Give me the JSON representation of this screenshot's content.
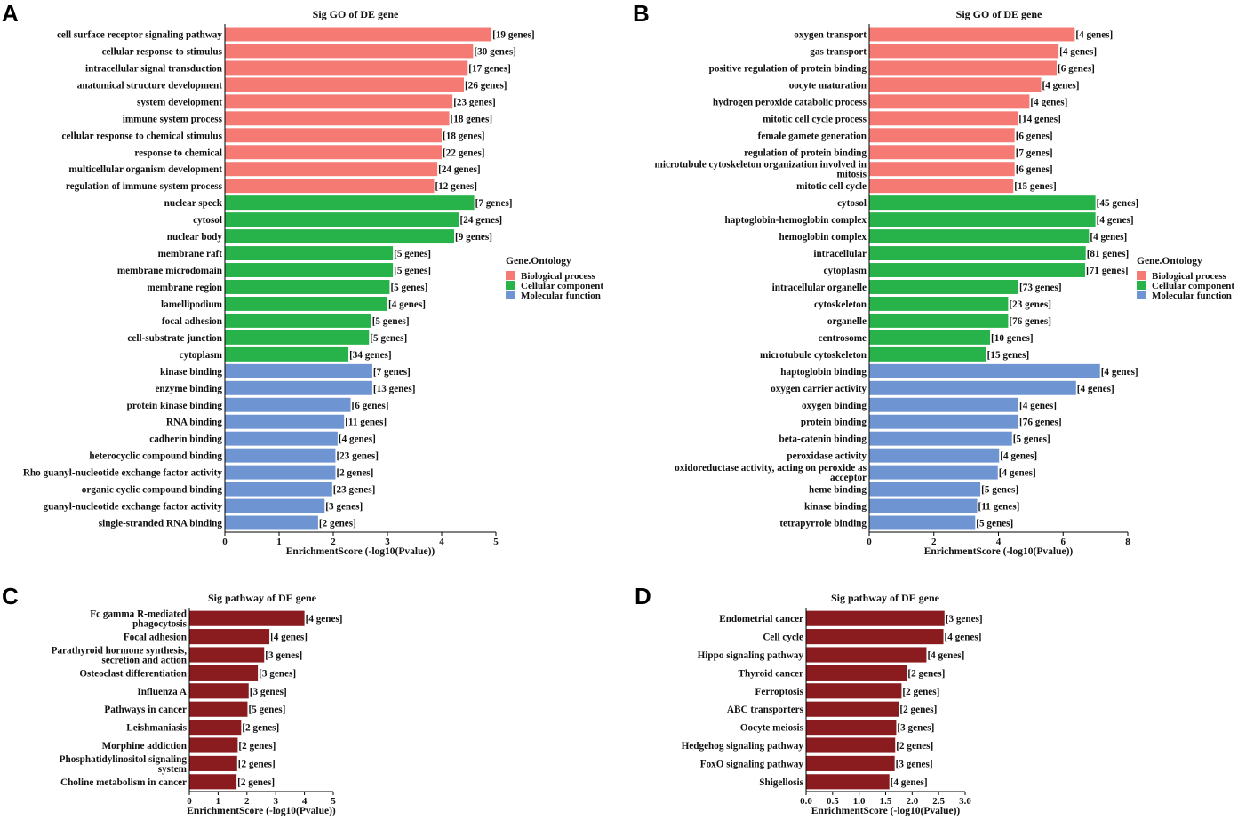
{
  "colors": {
    "biological_process": "#F47A73",
    "cellular_component": "#27B34A",
    "molecular_function": "#6E95D2",
    "pathway": "#8A1C1F"
  },
  "chart_data": [
    {
      "panel": "A",
      "type": "bar",
      "orientation": "horizontal",
      "title": "Sig GO of DE gene",
      "xlabel": "EnrichmentScore (-log10(Pvalue))",
      "xlim": [
        0,
        5
      ],
      "xticks": [
        "0",
        "1",
        "2",
        "3",
        "4",
        "5"
      ],
      "legend": {
        "title": "Gene.Ontology",
        "position": "right",
        "entries": [
          {
            "label": "Biological process",
            "group": "biological_process"
          },
          {
            "label": "Cellular component",
            "group": "cellular_component"
          },
          {
            "label": "Molecular function",
            "group": "molecular_function"
          }
        ]
      },
      "bars": [
        {
          "category": "cell surface receptor signaling pathway",
          "value": 4.92,
          "label": "[19 genes]",
          "group": "biological_process"
        },
        {
          "category": "cellular response to stimulus",
          "value": 4.58,
          "label": "[30 genes]",
          "group": "biological_process"
        },
        {
          "category": "intracellular signal transduction",
          "value": 4.48,
          "label": "[17 genes]",
          "group": "biological_process"
        },
        {
          "category": "anatomical structure development",
          "value": 4.41,
          "label": "[26 genes]",
          "group": "biological_process"
        },
        {
          "category": "system development",
          "value": 4.2,
          "label": "[23 genes]",
          "group": "biological_process"
        },
        {
          "category": "immune system process",
          "value": 4.14,
          "label": "[18 genes]",
          "group": "biological_process"
        },
        {
          "category": "cellular response to chemical stimulus",
          "value": 4.0,
          "label": "[18 genes]",
          "group": "biological_process"
        },
        {
          "category": "response to chemical",
          "value": 4.0,
          "label": "[22 genes]",
          "group": "biological_process"
        },
        {
          "category": "multicellular organism development",
          "value": 3.92,
          "label": "[24 genes]",
          "group": "biological_process"
        },
        {
          "category": "regulation of immune system process",
          "value": 3.86,
          "label": "[12 genes]",
          "group": "biological_process"
        },
        {
          "category": "nuclear speck",
          "value": 4.6,
          "label": "[7 genes]",
          "group": "cellular_component"
        },
        {
          "category": "cytosol",
          "value": 4.32,
          "label": "[24 genes]",
          "group": "cellular_component"
        },
        {
          "category": "nuclear body",
          "value": 4.23,
          "label": "[9 genes]",
          "group": "cellular_component"
        },
        {
          "category": "membrane raft",
          "value": 3.1,
          "label": "[5 genes]",
          "group": "cellular_component"
        },
        {
          "category": "membrane microdomain",
          "value": 3.1,
          "label": "[5 genes]",
          "group": "cellular_component"
        },
        {
          "category": "membrane region",
          "value": 3.04,
          "label": "[5 genes]",
          "group": "cellular_component"
        },
        {
          "category": "lamellipodium",
          "value": 3.0,
          "label": "[4 genes]",
          "group": "cellular_component"
        },
        {
          "category": "focal adhesion",
          "value": 2.7,
          "label": "[5 genes]",
          "group": "cellular_component"
        },
        {
          "category": "cell-substrate junction",
          "value": 2.66,
          "label": "[5 genes]",
          "group": "cellular_component"
        },
        {
          "category": "cytoplasm",
          "value": 2.28,
          "label": "[34 genes]",
          "group": "cellular_component"
        },
        {
          "category": "kinase binding",
          "value": 2.72,
          "label": "[7 genes]",
          "group": "molecular_function"
        },
        {
          "category": "enzyme binding",
          "value": 2.72,
          "label": "[13 genes]",
          "group": "molecular_function"
        },
        {
          "category": "protein kinase binding",
          "value": 2.32,
          "label": "[6 genes]",
          "group": "molecular_function"
        },
        {
          "category": "RNA binding",
          "value": 2.2,
          "label": "[11 genes]",
          "group": "molecular_function"
        },
        {
          "category": "cadherin binding",
          "value": 2.08,
          "label": "[4 genes]",
          "group": "molecular_function"
        },
        {
          "category": "heterocyclic compound binding",
          "value": 2.04,
          "label": "[23 genes]",
          "group": "molecular_function"
        },
        {
          "category": "Rho guanyl-nucleotide exchange factor activity",
          "value": 2.04,
          "label": "[2 genes]",
          "group": "molecular_function"
        },
        {
          "category": "organic cyclic compound binding",
          "value": 1.98,
          "label": "[23 genes]",
          "group": "molecular_function"
        },
        {
          "category": "guanyl-nucleotide exchange factor activity",
          "value": 1.84,
          "label": "[3 genes]",
          "group": "molecular_function"
        },
        {
          "category": "single-stranded RNA binding",
          "value": 1.72,
          "label": "[2 genes]",
          "group": "molecular_function"
        }
      ]
    },
    {
      "panel": "B",
      "type": "bar",
      "orientation": "horizontal",
      "title": "Sig GO of DE gene",
      "xlabel": "EnrichmentScore (-log10(Pvalue))",
      "xlim": [
        0,
        8
      ],
      "xticks": [
        "0",
        "2",
        "4",
        "6",
        "8"
      ],
      "legend": {
        "title": "Gene.Ontology",
        "position": "right",
        "entries": [
          {
            "label": "Biological process",
            "group": "biological_process"
          },
          {
            "label": "Cellular component",
            "group": "cellular_component"
          },
          {
            "label": "Molecular function",
            "group": "molecular_function"
          }
        ]
      },
      "bars": [
        {
          "category": "oxygen transport",
          "value": 6.36,
          "label": "[4 genes]",
          "group": "biological_process"
        },
        {
          "category": "gas transport",
          "value": 5.86,
          "label": "[4 genes]",
          "group": "biological_process"
        },
        {
          "category": "positive regulation of protein binding",
          "value": 5.8,
          "label": "[6 genes]",
          "group": "biological_process"
        },
        {
          "category": "oocyte maturation",
          "value": 5.32,
          "label": "[4 genes]",
          "group": "biological_process"
        },
        {
          "category": "hydrogen peroxide catabolic process",
          "value": 4.96,
          "label": "[4 genes]",
          "group": "biological_process"
        },
        {
          "category": "mitotic cell cycle process",
          "value": 4.6,
          "label": "[14 genes]",
          "group": "biological_process"
        },
        {
          "category": "female gamete generation",
          "value": 4.5,
          "label": "[6 genes]",
          "group": "biological_process"
        },
        {
          "category": "regulation of protein binding",
          "value": 4.5,
          "label": "[7 genes]",
          "group": "biological_process"
        },
        {
          "category": "microtubule cytoskeleton organization involved in mitosis",
          "value": 4.5,
          "label": "[6 genes]",
          "group": "biological_process"
        },
        {
          "category": "mitotic cell cycle",
          "value": 4.46,
          "label": "[15 genes]",
          "group": "biological_process"
        },
        {
          "category": "cytosol",
          "value": 7.0,
          "label": "[45 genes]",
          "group": "cellular_component"
        },
        {
          "category": "haptoglobin-hemoglobin complex",
          "value": 7.0,
          "label": "[4 genes]",
          "group": "cellular_component"
        },
        {
          "category": "hemoglobin complex",
          "value": 6.8,
          "label": "[4 genes]",
          "group": "cellular_component"
        },
        {
          "category": "intracellular",
          "value": 6.7,
          "label": "[81 genes]",
          "group": "cellular_component"
        },
        {
          "category": "cytoplasm",
          "value": 6.68,
          "label": "[71 genes]",
          "group": "cellular_component"
        },
        {
          "category": "intracellular organelle",
          "value": 4.62,
          "label": "[73 genes]",
          "group": "cellular_component"
        },
        {
          "category": "cytoskeleton",
          "value": 4.3,
          "label": "[23 genes]",
          "group": "cellular_component"
        },
        {
          "category": "organelle",
          "value": 4.3,
          "label": "[76 genes]",
          "group": "cellular_component"
        },
        {
          "category": "centrosome",
          "value": 3.74,
          "label": "[10 genes]",
          "group": "cellular_component"
        },
        {
          "category": "microtubule cytoskeleton",
          "value": 3.62,
          "label": "[15 genes]",
          "group": "cellular_component"
        },
        {
          "category": "haptoglobin binding",
          "value": 7.14,
          "label": "[4 genes]",
          "group": "molecular_function"
        },
        {
          "category": "oxygen carrier activity",
          "value": 6.4,
          "label": "[4 genes]",
          "group": "molecular_function"
        },
        {
          "category": "oxygen binding",
          "value": 4.62,
          "label": "[4 genes]",
          "group": "molecular_function"
        },
        {
          "category": "protein binding",
          "value": 4.62,
          "label": "[76 genes]",
          "group": "molecular_function"
        },
        {
          "category": "beta-catenin binding",
          "value": 4.42,
          "label": "[5 genes]",
          "group": "molecular_function"
        },
        {
          "category": "peroxidase activity",
          "value": 4.02,
          "label": "[4 genes]",
          "group": "molecular_function"
        },
        {
          "category": "oxidoreductase activity, acting on peroxide as acceptor",
          "value": 3.98,
          "label": "[4 genes]",
          "group": "molecular_function"
        },
        {
          "category": "heme binding",
          "value": 3.44,
          "label": "[5 genes]",
          "group": "molecular_function"
        },
        {
          "category": "kinase binding",
          "value": 3.34,
          "label": "[11 genes]",
          "group": "molecular_function"
        },
        {
          "category": "tetrapyrrole binding",
          "value": 3.28,
          "label": "[5 genes]",
          "group": "molecular_function"
        }
      ]
    },
    {
      "panel": "C",
      "type": "bar",
      "orientation": "horizontal",
      "title": "Sig pathway of DE gene",
      "xlabel": "EnrichmentScore (-log10(Pvalue))",
      "xlim": [
        0,
        5
      ],
      "xticks": [
        "0",
        "1",
        "2",
        "3",
        "4",
        "5"
      ],
      "bars": [
        {
          "category": "Fc gamma R-mediated phagocytosis",
          "value": 4.0,
          "label": "[4 genes]",
          "group": "pathway"
        },
        {
          "category": "Focal adhesion",
          "value": 2.78,
          "label": "[4 genes]",
          "group": "pathway"
        },
        {
          "category": "Parathyroid hormone synthesis, secretion and action",
          "value": 2.6,
          "label": "[3 genes]",
          "group": "pathway"
        },
        {
          "category": "Osteoclast differentiation",
          "value": 2.38,
          "label": "[3 genes]",
          "group": "pathway"
        },
        {
          "category": "Influenza A",
          "value": 2.06,
          "label": "[3 genes]",
          "group": "pathway"
        },
        {
          "category": "Pathways in cancer",
          "value": 2.02,
          "label": "[5 genes]",
          "group": "pathway"
        },
        {
          "category": "Leishmaniasis",
          "value": 1.8,
          "label": "[2 genes]",
          "group": "pathway"
        },
        {
          "category": "Morphine addiction",
          "value": 1.68,
          "label": "[2 genes]",
          "group": "pathway"
        },
        {
          "category": "Phosphatidylinositol signaling system",
          "value": 1.66,
          "label": "[2 genes]",
          "group": "pathway"
        },
        {
          "category": "Choline metabolism in cancer",
          "value": 1.64,
          "label": "[2 genes]",
          "group": "pathway"
        }
      ]
    },
    {
      "panel": "D",
      "type": "bar",
      "orientation": "horizontal",
      "title": "Sig pathway of DE gene",
      "xlabel": "EnrichmentScore (-log10(Pvalue))",
      "xlim": [
        0,
        3
      ],
      "xticks": [
        "0.0",
        "0.5",
        "1.0",
        "1.5",
        "2.0",
        "2.5",
        "3.0"
      ],
      "bars": [
        {
          "category": "Endometrial cancer",
          "value": 2.61,
          "label": "[3 genes]",
          "group": "pathway"
        },
        {
          "category": "Cell cycle",
          "value": 2.59,
          "label": "[4 genes]",
          "group": "pathway"
        },
        {
          "category": "Hippo signaling pathway",
          "value": 2.27,
          "label": "[4 genes]",
          "group": "pathway"
        },
        {
          "category": "Thyroid cancer",
          "value": 1.9,
          "label": "[2 genes]",
          "group": "pathway"
        },
        {
          "category": "Ferroptosis",
          "value": 1.8,
          "label": "[2 genes]",
          "group": "pathway"
        },
        {
          "category": "ABC transporters",
          "value": 1.75,
          "label": "[2 genes]",
          "group": "pathway"
        },
        {
          "category": "Oocyte meiosis",
          "value": 1.7,
          "label": "[3 genes]",
          "group": "pathway"
        },
        {
          "category": "Hedgehog signaling pathway",
          "value": 1.68,
          "label": "[2 genes]",
          "group": "pathway"
        },
        {
          "category": "FoxO signaling pathway",
          "value": 1.67,
          "label": "[3 genes]",
          "group": "pathway"
        },
        {
          "category": "Shigellosis",
          "value": 1.57,
          "label": "[4 genes]",
          "group": "pathway"
        }
      ]
    }
  ]
}
